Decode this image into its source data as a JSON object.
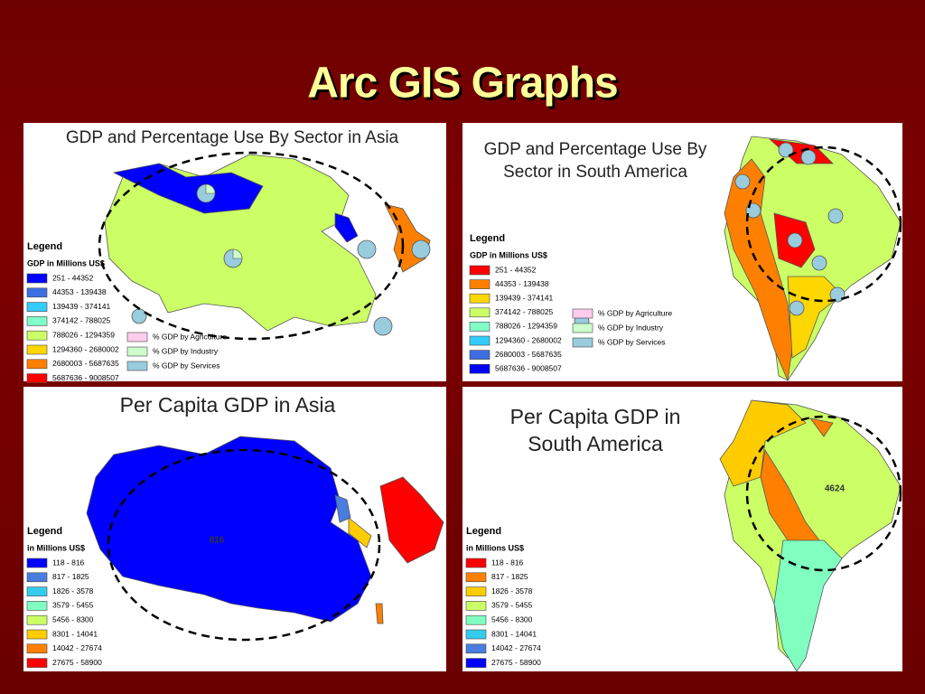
{
  "title": "Arc GIS Graphs",
  "panels": [
    {
      "title": [
        "GDP and Percentage Use By Sector in Asia"
      ],
      "legend_title": "Legend",
      "legend_subtitle": "GDP in Millions US$",
      "legend_items": [
        {
          "label": "251 - 44352",
          "color": "#0000ff"
        },
        {
          "label": "44353 - 139438",
          "color": "#3d6fe0"
        },
        {
          "label": "139439 - 374141",
          "color": "#33ccff"
        },
        {
          "label": "374142 - 788025",
          "color": "#80ffc8"
        },
        {
          "label": "788026 - 1294359",
          "color": "#ccff66"
        },
        {
          "label": "1294360 - 2680002",
          "color": "#ffd700"
        },
        {
          "label": "2680003 - 5687635",
          "color": "#ff8000"
        },
        {
          "label": "5687636 - 9008507",
          "color": "#ff0000"
        }
      ],
      "pie_legend": [
        {
          "label": "% GDP by Agriculture",
          "color": "#ffccee"
        },
        {
          "label": "% GDP by Industry",
          "color": "#ccffcc"
        },
        {
          "label": "% GDP by Services",
          "color": "#99ccdd"
        }
      ]
    },
    {
      "title": [
        "GDP and Percentage Use By",
        "Sector in South America"
      ],
      "legend_title": "Legend",
      "legend_subtitle": "GDP in Millions US$",
      "legend_items": [
        {
          "label": "251 - 44352",
          "color": "#ff0000"
        },
        {
          "label": "44353 - 139438",
          "color": "#ff8000"
        },
        {
          "label": "139439 - 374141",
          "color": "#ffd700"
        },
        {
          "label": "374142 - 788025",
          "color": "#ccff66"
        },
        {
          "label": "788026 - 1294359",
          "color": "#80ffc8"
        },
        {
          "label": "1294360 - 2680002",
          "color": "#33ccff"
        },
        {
          "label": "2680003 - 5687635",
          "color": "#3d6fe0"
        },
        {
          "label": "5687636 - 9008507",
          "color": "#0000ff"
        }
      ],
      "pie_legend": [
        {
          "label": "% GDP by Agriculture",
          "color": "#ffccee"
        },
        {
          "label": "% GDP by Industry",
          "color": "#ccffcc"
        },
        {
          "label": "% GDP by Services",
          "color": "#99ccdd"
        }
      ]
    },
    {
      "title": [
        "Per Capita GDP in Asia"
      ],
      "legend_title": "Legend",
      "legend_subtitle": "in Millions US$",
      "legend_items": [
        {
          "label": "118 - 816",
          "color": "#0000ff"
        },
        {
          "label": "817 - 1825",
          "color": "#4a7de0"
        },
        {
          "label": "1826 - 3578",
          "color": "#33ccee"
        },
        {
          "label": "3579 - 5455",
          "color": "#80ffc0"
        },
        {
          "label": "5456 - 8300",
          "color": "#ccff66"
        },
        {
          "label": "8301 - 14041",
          "color": "#ffcc00"
        },
        {
          "label": "14042 - 27674",
          "color": "#ff8000"
        },
        {
          "label": "27675 - 58900",
          "color": "#ff0000"
        }
      ],
      "map_label": "816"
    },
    {
      "title": [
        "Per Capita GDP in",
        "South America"
      ],
      "legend_title": "Legend",
      "legend_subtitle": "in Millions US$",
      "legend_items": [
        {
          "label": "118 - 816",
          "color": "#ff0000"
        },
        {
          "label": "817 - 1825",
          "color": "#ff8000"
        },
        {
          "label": "1826 - 3578",
          "color": "#ffcc00"
        },
        {
          "label": "3579 - 5455",
          "color": "#ccff66"
        },
        {
          "label": "5456 - 8300",
          "color": "#80ffc0"
        },
        {
          "label": "8301 - 14041",
          "color": "#33ccee"
        },
        {
          "label": "14042 - 27674",
          "color": "#4a7de0"
        },
        {
          "label": "27675 - 58900",
          "color": "#0000ff"
        }
      ],
      "map_label": "4624"
    }
  ]
}
